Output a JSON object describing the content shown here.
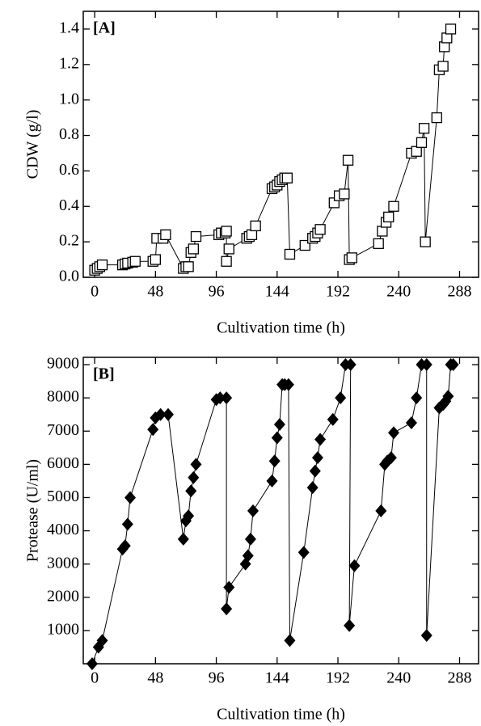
{
  "chart_data": [
    {
      "type": "line",
      "marker": "square-open",
      "color": "#000000",
      "annotation": "[A]",
      "x_label": "Cultivation time (h)",
      "y_label": "CDW (g/l)",
      "xlim": [
        -9,
        303
      ],
      "ylim": [
        0,
        1.5
      ],
      "xticks": [
        0,
        48,
        96,
        144,
        192,
        240,
        288
      ],
      "yticks": [
        {
          "value": 0,
          "label": "0.0"
        },
        0.2,
        0.4,
        0.6,
        0.8,
        {
          "value": 1,
          "label": "1.0"
        },
        1.2,
        1.4
      ],
      "x": [
        0,
        2,
        4,
        6,
        22,
        24,
        26,
        30,
        32,
        46,
        48,
        49,
        54,
        56,
        70,
        72,
        74,
        76,
        78,
        80,
        98,
        100,
        103,
        104,
        104,
        106,
        120,
        122,
        124,
        127,
        140,
        142,
        144,
        146,
        148,
        150,
        152,
        154,
        166,
        172,
        174,
        176,
        178,
        189,
        193,
        197,
        200,
        201,
        203,
        224,
        227,
        230,
        232,
        236,
        250,
        254,
        258,
        260,
        261,
        270,
        272,
        275,
        276,
        278,
        281
      ],
      "values": [
        0.04,
        0.05,
        0.06,
        0.07,
        0.07,
        0.075,
        0.08,
        0.085,
        0.09,
        0.09,
        0.1,
        0.22,
        0.22,
        0.24,
        0.05,
        0.06,
        0.06,
        0.14,
        0.16,
        0.23,
        0.24,
        0.25,
        0.25,
        0.26,
        0.09,
        0.16,
        0.22,
        0.23,
        0.24,
        0.29,
        0.5,
        0.51,
        0.52,
        0.54,
        0.55,
        0.56,
        0.56,
        0.13,
        0.18,
        0.22,
        0.23,
        0.25,
        0.27,
        0.42,
        0.46,
        0.47,
        0.66,
        0.1,
        0.11,
        0.19,
        0.26,
        0.31,
        0.34,
        0.4,
        0.7,
        0.71,
        0.76,
        0.84,
        0.2,
        0.9,
        1.17,
        1.19,
        1.3,
        1.35,
        1.4
      ]
    },
    {
      "type": "line",
      "marker": "diamond-filled",
      "color": "#000000",
      "annotation": "[B]",
      "x_label": "Cultivation time (h)",
      "y_label": "Protease (U/ml)",
      "xlim": [
        -9,
        303
      ],
      "ylim": [
        0,
        9220
      ],
      "xticks": [
        0,
        48,
        96,
        144,
        192,
        240,
        288
      ],
      "yticks": [
        1000,
        2000,
        3000,
        4000,
        5000,
        6000,
        7000,
        8000,
        9000
      ],
      "x": [
        -2,
        3,
        6,
        22,
        24,
        26,
        28,
        46,
        48,
        52,
        58,
        70,
        72,
        74,
        76,
        78,
        80,
        96,
        99,
        104,
        104,
        106,
        119,
        121,
        123,
        125,
        140,
        142,
        144,
        146,
        148,
        150,
        153,
        154,
        165,
        172,
        174,
        176,
        178,
        188,
        194,
        198,
        202,
        201,
        205,
        226,
        229,
        231,
        234,
        236,
        250,
        254,
        258,
        262,
        262,
        272,
        275,
        277,
        279,
        281,
        283
      ],
      "values": [
        0,
        500,
        700,
        3450,
        3550,
        4200,
        5000,
        7050,
        7400,
        7500,
        7500,
        3750,
        4300,
        4450,
        5200,
        5600,
        6000,
        7950,
        8000,
        8000,
        1650,
        2300,
        3000,
        3250,
        3750,
        4600,
        5500,
        6100,
        6800,
        7200,
        8400,
        8400,
        8400,
        700,
        3350,
        5300,
        5800,
        6200,
        6750,
        7350,
        8000,
        9000,
        9000,
        1150,
        2950,
        4600,
        6000,
        6100,
        6200,
        6950,
        7250,
        8000,
        9000,
        9000,
        850,
        7700,
        7800,
        7900,
        8050,
        9000,
        9000
      ]
    }
  ]
}
